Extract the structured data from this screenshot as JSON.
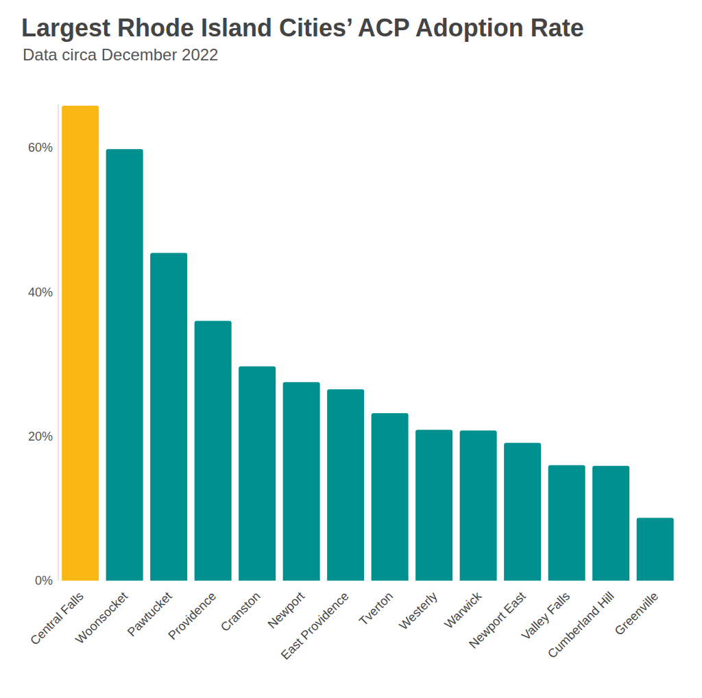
{
  "chart_data": {
    "type": "bar",
    "title": "Largest Rhode Island Cities’ ACP Adoption Rate",
    "subtitle": "Data circa December 2022",
    "categories": [
      "Central Falls",
      "Woonsocket",
      "Pawtucket",
      "Providence",
      "Cranston",
      "Newport",
      "East Providence",
      "Tverton",
      "Westerly",
      "Warwick",
      "Newport East",
      "Valley Falls",
      "Cumberland Hill",
      "Greenville"
    ],
    "values": [
      65.8,
      59.8,
      45.4,
      36.0,
      29.7,
      27.5,
      26.5,
      23.2,
      20.9,
      20.8,
      19.1,
      16.0,
      15.9,
      8.7
    ],
    "colors": [
      "#f9b814",
      "#00908f",
      "#00908f",
      "#00908f",
      "#00908f",
      "#00908f",
      "#00908f",
      "#00908f",
      "#00908f",
      "#00908f",
      "#00908f",
      "#00908f",
      "#00908f",
      "#00908f"
    ],
    "ylim": [
      0,
      66
    ],
    "yticks": [
      {
        "value": 0,
        "label": "0%"
      },
      {
        "value": 20,
        "label": "20%"
      },
      {
        "value": 40,
        "label": "40%"
      },
      {
        "value": 60,
        "label": "60%"
      }
    ],
    "grid": false
  }
}
